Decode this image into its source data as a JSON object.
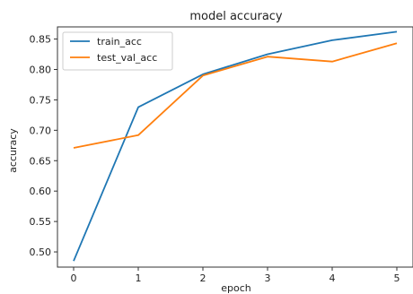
{
  "chart_data": {
    "type": "line",
    "title": "model accuracy",
    "xlabel": "epoch",
    "ylabel": "accuracy",
    "x": [
      0,
      1,
      2,
      3,
      4,
      5
    ],
    "xticks": [
      "0",
      "1",
      "2",
      "3",
      "4",
      "5"
    ],
    "yticks": [
      "0.50",
      "0.55",
      "0.60",
      "0.65",
      "0.70",
      "0.75",
      "0.80",
      "0.85"
    ],
    "xlim": [
      -0.25,
      5.25
    ],
    "ylim": [
      0.475,
      0.87
    ],
    "grid": false,
    "legend_position": "top-left",
    "series": [
      {
        "name": "train_acc",
        "color": "#1f77b4",
        "values": [
          0.485,
          0.738,
          0.792,
          0.825,
          0.848,
          0.862
        ]
      },
      {
        "name": "test_val_acc",
        "color": "#ff7f0e",
        "values": [
          0.671,
          0.692,
          0.79,
          0.821,
          0.813,
          0.843
        ]
      }
    ]
  }
}
